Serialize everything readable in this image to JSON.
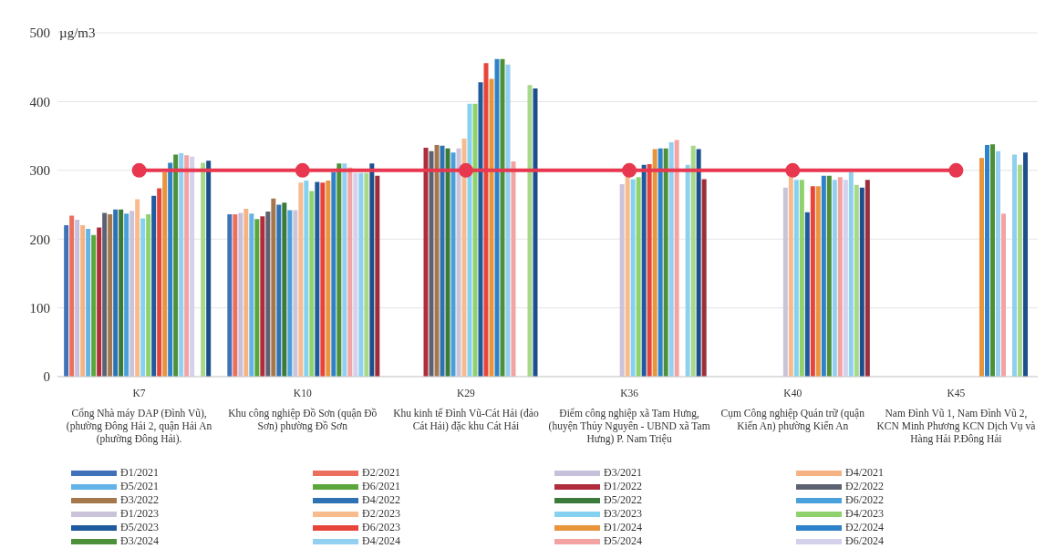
{
  "chart_data": {
    "type": "bar",
    "ylabel": "µg/m3",
    "ylim": [
      0,
      500
    ],
    "yticks": [
      0,
      100,
      200,
      300,
      400,
      500
    ],
    "grid": "y",
    "legend": "bottom",
    "marker": "circle",
    "categories": [
      "K7\nCổng Nhà máy DAP (Đình Vũ), (phường Đông Hải 2, quận Hải An (phường Đông Hải).",
      "K10\nKhu công nghiệp Đồ Sơn (quận Đồ Sơn) phường Đồ Sơn",
      "K29\nKhu kinh tế Đình Vũ-Cát Hải (đảo Cát Hải) đặc khu Cát Hải",
      "K36\nĐiểm công nghiệp xã Tam Hưng, (huyện Thủy Nguyên - UBND xã Tam Hưng) P. Nam Triệu",
      "K40\nCụm Công nghiệp Quán trữ (quận Kiến An) phường Kiến An",
      "K45\nNam Đình Vũ 1, Nam Đình Vũ 2, KCN Minh Phương KCN Dịch Vụ và Hàng Hải P.Đông Hải"
    ],
    "series": [
      {
        "name": "Đ1/2021",
        "color": "#3f72b8",
        "values": [
          220,
          236,
          null,
          null,
          null,
          null
        ]
      },
      {
        "name": "Đ2/2021",
        "color": "#ec6f5e",
        "values": [
          234,
          236,
          null,
          null,
          null,
          null
        ]
      },
      {
        "name": "Đ3/2021",
        "color": "#c6c0da",
        "values": [
          228,
          238,
          null,
          null,
          null,
          null
        ]
      },
      {
        "name": "Đ4/2021",
        "color": "#f5b384",
        "values": [
          220,
          244,
          null,
          null,
          null,
          null
        ]
      },
      {
        "name": "Đ5/2021",
        "color": "#62b3e8",
        "values": [
          215,
          237,
          null,
          null,
          null,
          null
        ]
      },
      {
        "name": "Đ6/2021",
        "color": "#5aa63a",
        "values": [
          206,
          229,
          null,
          null,
          null,
          null
        ]
      },
      {
        "name": "Đ1/2022",
        "color": "#b02b3c",
        "values": [
          217,
          233,
          333,
          null,
          null,
          null
        ]
      },
      {
        "name": "Đ2/2022",
        "color": "#5c6272",
        "values": [
          238,
          240,
          328,
          null,
          null,
          null
        ]
      },
      {
        "name": "Đ3/2022",
        "color": "#a5774c",
        "values": [
          236,
          259,
          337,
          null,
          null,
          null
        ]
      },
      {
        "name": "Đ4/2022",
        "color": "#2e72b4",
        "values": [
          243,
          250,
          336,
          null,
          null,
          null
        ]
      },
      {
        "name": "Đ5/2022",
        "color": "#3a7a3a",
        "values": [
          243,
          253,
          332,
          null,
          null,
          null
        ]
      },
      {
        "name": "Đ6/2022",
        "color": "#4aa0da",
        "values": [
          237,
          242,
          326,
          null,
          null,
          null
        ]
      },
      {
        "name": "Đ1/2023",
        "color": "#cbc3da",
        "values": [
          241,
          242,
          332,
          280,
          275,
          null
        ]
      },
      {
        "name": "Đ2/2023",
        "color": "#f7bb8e",
        "values": [
          258,
          282,
          346,
          292,
          290,
          null
        ]
      },
      {
        "name": "Đ3/2023",
        "color": "#84d2ef",
        "values": [
          230,
          285,
          397,
          287,
          286,
          null
        ]
      },
      {
        "name": "Đ4/2023",
        "color": "#8fd16c",
        "values": [
          236,
          270,
          397,
          290,
          286,
          null
        ]
      },
      {
        "name": "Đ5/2023",
        "color": "#1f5a9e",
        "values": [
          263,
          283,
          428,
          308,
          239,
          null
        ]
      },
      {
        "name": "Đ6/2023",
        "color": "#e8453a",
        "values": [
          274,
          282,
          456,
          309,
          277,
          null
        ]
      },
      {
        "name": "Đ1/2024",
        "color": "#e8953c",
        "values": [
          297,
          285,
          433,
          331,
          277,
          318
        ]
      },
      {
        "name": "Đ2/2024",
        "color": "#2f82c9",
        "values": [
          311,
          297,
          462,
          332,
          292,
          337
        ]
      },
      {
        "name": "Đ3/2024",
        "color": "#4c913a",
        "values": [
          323,
          310,
          462,
          332,
          292,
          338
        ]
      },
      {
        "name": "Đ4/2024",
        "color": "#92cff0",
        "values": [
          325,
          310,
          454,
          341,
          286,
          328
        ]
      },
      {
        "name": "Đ5/2024",
        "color": "#f4a3a3",
        "values": [
          322,
          304,
          313,
          344,
          290,
          237
        ]
      },
      {
        "name": "Đ6/2024",
        "color": "#d3d1ec",
        "values": [
          320,
          296,
          null,
          null,
          286,
          null
        ]
      },
      {
        "color": "#8fd0ee",
        "values": [
          null,
          296,
          null,
          308,
          297,
          323
        ]
      },
      {
        "color": "#a6d98a",
        "values": [
          311,
          296,
          424,
          336,
          279,
          308
        ]
      },
      {
        "color": "#1e4f8d",
        "values": [
          314,
          310,
          419,
          331,
          275,
          326
        ]
      },
      {
        "color": "#9c2e3c",
        "values": [
          null,
          292,
          null,
          287,
          286,
          null
        ]
      },
      {
        "type": "line",
        "color": "#e8384f",
        "values": [
          300,
          300,
          300,
          300,
          300,
          300
        ]
      }
    ]
  }
}
